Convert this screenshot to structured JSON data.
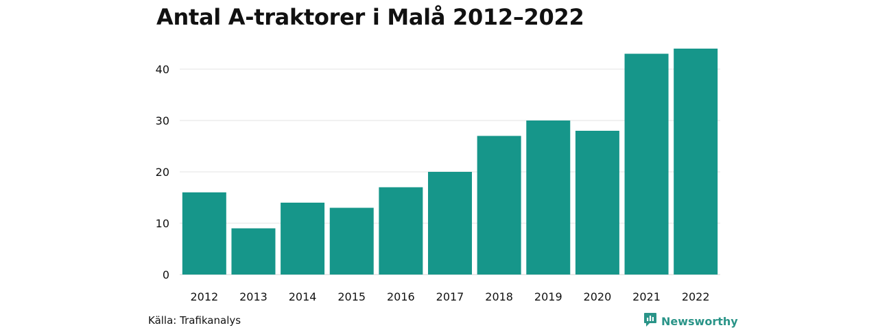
{
  "chart_data": {
    "type": "bar",
    "title": "Antal A-traktorer i Malå 2012–2022",
    "categories": [
      "2012",
      "2013",
      "2014",
      "2015",
      "2016",
      "2017",
      "2018",
      "2019",
      "2020",
      "2021",
      "2022"
    ],
    "values": [
      16,
      9,
      14,
      13,
      17,
      20,
      27,
      30,
      28,
      43,
      44
    ],
    "ylim": [
      0,
      46
    ],
    "yticks": [
      0,
      10,
      20,
      30,
      40
    ],
    "xlabel": "",
    "ylabel": "",
    "grid": true,
    "bar_color": "#16968a",
    "grid_color": "#e3e3e3"
  },
  "footer": {
    "source": "Källa: Trafikanalys",
    "brand": "Newsworthy",
    "brand_color": "#2a9488"
  }
}
